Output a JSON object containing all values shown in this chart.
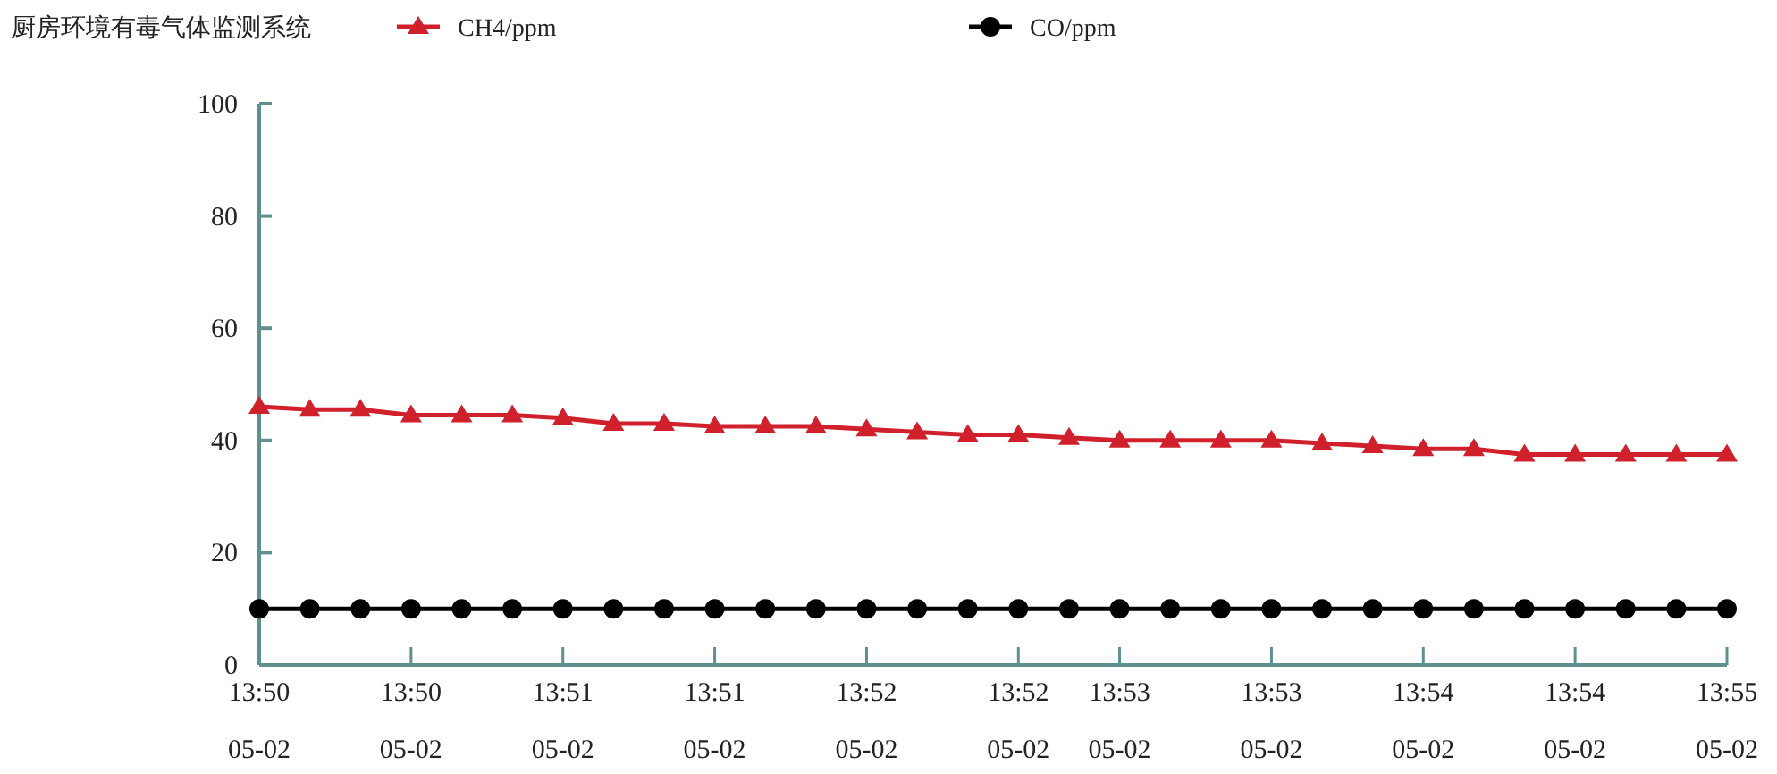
{
  "chart_data": {
    "type": "line",
    "title": "厨房环境有毒气体监测系统",
    "categories": [
      "13:50\n05-02",
      null,
      null,
      "13:50\n05-02",
      null,
      null,
      "13:51\n05-02",
      null,
      null,
      "13:51\n05-02",
      null,
      null,
      "13:52\n05-02",
      null,
      null,
      "13:52\n05-02",
      null,
      "13:53\n05-02",
      null,
      null,
      "13:53\n05-02",
      null,
      null,
      "13:54\n05-02",
      null,
      null,
      "13:54\n05-02",
      null,
      null,
      "13:55\n05-02"
    ],
    "series": [
      {
        "name": "CH4/ppm",
        "color": "#d0202c",
        "marker": "triangle",
        "values": [
          46,
          45.5,
          45.5,
          44.5,
          44.5,
          44.5,
          44,
          43,
          43,
          42.5,
          42.5,
          42.5,
          42,
          41.5,
          41,
          41,
          40.5,
          40,
          40,
          40,
          40,
          39.5,
          39,
          38.5,
          38.5,
          37.5,
          37.5,
          37.5,
          37.5,
          37.5
        ]
      },
      {
        "name": "CO/ppm",
        "color": "#000000",
        "marker": "circle",
        "values": [
          10,
          10,
          10,
          10,
          10,
          10,
          10,
          10,
          10,
          10,
          10,
          10,
          10,
          10,
          10,
          10,
          10,
          10,
          10,
          10,
          10,
          10,
          10,
          10,
          10,
          10,
          10,
          10,
          10,
          10
        ]
      }
    ],
    "ylim": [
      0,
      100
    ],
    "yticks": [
      0,
      20,
      40,
      60,
      80,
      100
    ],
    "legend": "top",
    "line_style": "solid"
  }
}
